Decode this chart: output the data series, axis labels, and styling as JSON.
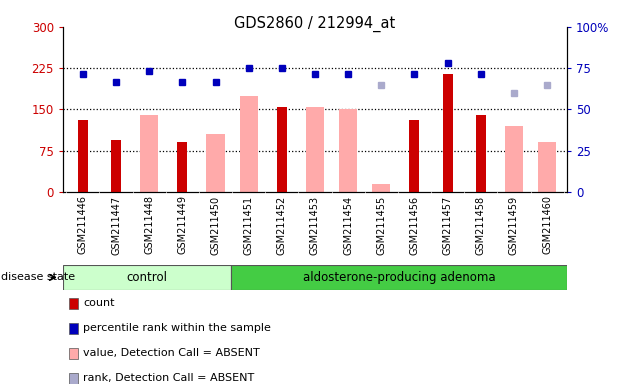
{
  "title": "GDS2860 / 212994_at",
  "samples": [
    "GSM211446",
    "GSM211447",
    "GSM211448",
    "GSM211449",
    "GSM211450",
    "GSM211451",
    "GSM211452",
    "GSM211453",
    "GSM211454",
    "GSM211455",
    "GSM211456",
    "GSM211457",
    "GSM211458",
    "GSM211459",
    "GSM211460"
  ],
  "count": [
    130,
    95,
    null,
    90,
    null,
    null,
    155,
    null,
    null,
    null,
    130,
    215,
    140,
    null,
    null
  ],
  "percentile": [
    215,
    200,
    220,
    200,
    200,
    225,
    225,
    215,
    215,
    null,
    215,
    235,
    215,
    null,
    null
  ],
  "value_absent": [
    null,
    null,
    140,
    null,
    105,
    175,
    null,
    155,
    150,
    15,
    null,
    null,
    null,
    120,
    90
  ],
  "rank_absent": [
    null,
    null,
    null,
    null,
    null,
    null,
    null,
    null,
    null,
    65,
    null,
    null,
    null,
    60,
    65
  ],
  "control_count": 5,
  "ylim_left": [
    0,
    300
  ],
  "ylim_right": [
    0,
    100
  ],
  "yticks_left": [
    0,
    75,
    150,
    225,
    300
  ],
  "yticks_right": [
    0,
    25,
    50,
    75,
    100
  ],
  "hlines": [
    75,
    150,
    225
  ],
  "color_count": "#cc0000",
  "color_percentile": "#0000bb",
  "color_value_absent": "#ffaaaa",
  "color_rank_absent": "#aaaacc",
  "color_xtick_bg": "#cccccc",
  "color_control_bg": "#ccffcc",
  "color_adenoma_bg": "#44cc44",
  "disease_state_label": "disease state",
  "group_control": "control",
  "group_adenoma": "aldosterone-producing adenoma",
  "legend_items": [
    {
      "label": "count",
      "color": "#cc0000"
    },
    {
      "label": "percentile rank within the sample",
      "color": "#0000bb"
    },
    {
      "label": "value, Detection Call = ABSENT",
      "color": "#ffaaaa"
    },
    {
      "label": "rank, Detection Call = ABSENT",
      "color": "#aaaacc"
    }
  ]
}
